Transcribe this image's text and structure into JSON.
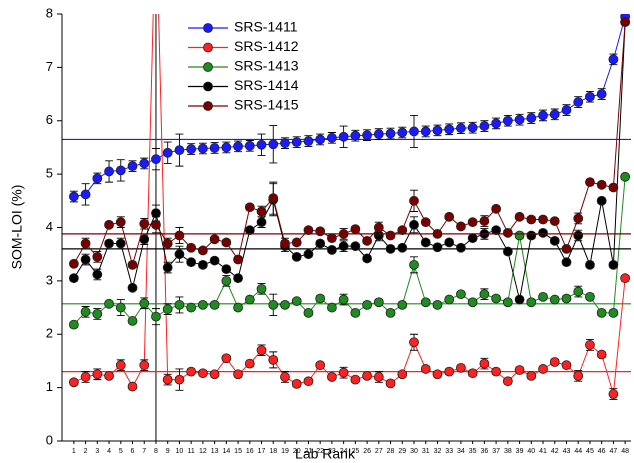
{
  "chart_data": {
    "type": "line",
    "x_label": "Lab Rank",
    "y_label": "SOM-LOI (%)",
    "categories": [
      "1",
      "2",
      "3",
      "4",
      "5",
      "6",
      "7",
      "8",
      "9",
      "10",
      "11",
      "12",
      "13",
      "14",
      "15",
      "16",
      "17",
      "18",
      "19",
      "20",
      "21",
      "22",
      "23",
      "24",
      "25",
      "26",
      "27",
      "28",
      "29",
      "30",
      "31",
      "32",
      "33",
      "34",
      "35",
      "36",
      "37",
      "38",
      "39",
      "40",
      "41",
      "42",
      "43",
      "44",
      "45",
      "46",
      "47",
      "48"
    ],
    "ylim": [
      0,
      8
    ],
    "yticks": [
      0,
      1,
      2,
      3,
      4,
      5,
      6,
      7,
      8
    ],
    "vline": 8,
    "legend": "upper left",
    "series": [
      {
        "name": "SRS-1411",
        "color": "#1a1aff",
        "mean": 5.65,
        "values": [
          4.58,
          4.62,
          4.92,
          5.05,
          5.07,
          5.15,
          5.2,
          5.28,
          5.4,
          5.45,
          5.47,
          5.48,
          5.49,
          5.5,
          5.52,
          5.53,
          5.55,
          5.56,
          5.58,
          5.6,
          5.62,
          5.65,
          5.68,
          5.7,
          5.72,
          5.73,
          5.75,
          5.76,
          5.78,
          5.8,
          5.8,
          5.82,
          5.84,
          5.86,
          5.87,
          5.9,
          5.95,
          6.0,
          6.02,
          6.05,
          6.1,
          6.12,
          6.2,
          6.35,
          6.45,
          6.5,
          7.15,
          7.95
        ],
        "errors": [
          0.1,
          0.2,
          0.1,
          0.2,
          0.2,
          0.1,
          0.1,
          0.2,
          0.2,
          0.3,
          0.1,
          0.1,
          0.1,
          0.1,
          0.1,
          0.1,
          0.2,
          0.35,
          0.1,
          0.1,
          0.1,
          0.1,
          0.1,
          0.2,
          0.1,
          0.1,
          0.1,
          0.1,
          0.1,
          0.3,
          0.1,
          0.1,
          0.1,
          0.1,
          0.1,
          0.1,
          0.1,
          0.1,
          0.1,
          0.1,
          0.1,
          0.1,
          0.1,
          0.1,
          0.1,
          0.1,
          0.1,
          0.1
        ]
      },
      {
        "name": "SRS-1412",
        "color": "#ff2020",
        "mean": 1.3,
        "values": [
          1.1,
          1.2,
          1.25,
          1.22,
          1.42,
          1.02,
          1.42,
          10,
          1.15,
          1.15,
          1.3,
          1.27,
          1.25,
          1.55,
          1.25,
          1.45,
          1.7,
          1.52,
          1.2,
          1.07,
          1.12,
          1.42,
          1.2,
          1.28,
          1.15,
          1.22,
          1.2,
          1.08,
          1.25,
          1.85,
          1.35,
          1.25,
          1.3,
          1.37,
          1.27,
          1.45,
          1.3,
          1.12,
          1.33,
          1.22,
          1.35,
          1.48,
          1.42,
          1.22,
          1.8,
          1.62,
          0.88,
          3.05
        ],
        "errors": [
          0.05,
          0.1,
          0.1,
          0.05,
          0.1,
          0.05,
          0.1,
          0.1,
          0.1,
          0.2,
          0.05,
          0.05,
          0.05,
          0.05,
          0.05,
          0.05,
          0.1,
          0.15,
          0.1,
          0.05,
          0.05,
          0.05,
          0.05,
          0.1,
          0.05,
          0.05,
          0.1,
          0.05,
          0.05,
          0.15,
          0.05,
          0.05,
          0.05,
          0.05,
          0.05,
          0.1,
          0.05,
          0.05,
          0.05,
          0.05,
          0.05,
          0.05,
          0.05,
          0.1,
          0.1,
          0.05,
          0.1,
          0.05
        ]
      },
      {
        "name": "SRS-1413",
        "color": "#1e8c1e",
        "mean": 2.57,
        "values": [
          2.18,
          2.42,
          2.38,
          2.57,
          2.5,
          2.25,
          2.58,
          2.33,
          2.47,
          2.55,
          2.5,
          2.55,
          2.55,
          3.0,
          2.5,
          2.65,
          2.85,
          2.55,
          2.55,
          2.62,
          2.4,
          2.67,
          2.5,
          2.65,
          2.4,
          2.55,
          2.6,
          2.4,
          2.55,
          3.3,
          2.6,
          2.55,
          2.65,
          2.75,
          2.6,
          2.75,
          2.67,
          2.6,
          3.85,
          2.6,
          2.7,
          2.65,
          2.67,
          2.8,
          2.7,
          2.4,
          2.4,
          4.95
        ],
        "errors": [
          0.05,
          0.1,
          0.1,
          0.05,
          0.15,
          0.05,
          0.1,
          0.15,
          0.1,
          0.15,
          0.05,
          0.05,
          0.05,
          0.1,
          0.05,
          0.05,
          0.1,
          0.2,
          0.05,
          0.05,
          0.05,
          0.05,
          0.05,
          0.1,
          0.05,
          0.05,
          0.05,
          0.05,
          0.05,
          0.15,
          0.05,
          0.05,
          0.05,
          0.05,
          0.05,
          0.1,
          0.05,
          0.05,
          0.05,
          0.05,
          0.05,
          0.05,
          0.05,
          0.1,
          0.05,
          0.05,
          0.05,
          0.05
        ]
      },
      {
        "name": "SRS-1414",
        "color": "#000000",
        "mean": 3.6,
        "values": [
          3.05,
          3.4,
          3.12,
          3.7,
          3.7,
          2.87,
          3.78,
          4.27,
          3.25,
          3.5,
          3.35,
          3.3,
          3.38,
          3.22,
          3.05,
          3.95,
          4.1,
          4.52,
          3.65,
          3.45,
          3.5,
          3.7,
          3.58,
          3.65,
          3.65,
          3.42,
          3.85,
          3.6,
          3.62,
          4.05,
          3.72,
          3.63,
          3.72,
          3.62,
          3.8,
          3.88,
          3.95,
          3.55,
          2.65,
          3.85,
          3.9,
          3.75,
          3.35,
          3.85,
          3.3,
          4.5,
          3.3,
          7.85
        ],
        "errors": [
          0.05,
          0.1,
          0.1,
          0.05,
          0.1,
          0.05,
          0.1,
          0.15,
          0.1,
          0.15,
          0.05,
          0.05,
          0.05,
          0.05,
          0.05,
          0.05,
          0.1,
          0.3,
          0.1,
          0.05,
          0.05,
          0.05,
          0.05,
          0.1,
          0.05,
          0.05,
          0.1,
          0.05,
          0.05,
          0.15,
          0.05,
          0.05,
          0.05,
          0.05,
          0.05,
          0.1,
          0.05,
          0.05,
          0.05,
          0.05,
          0.05,
          0.05,
          0.05,
          0.1,
          0.05,
          0.05,
          0.05,
          0.05
        ]
      },
      {
        "name": "SRS-1415",
        "color": "#7a0000",
        "mean": 3.88,
        "values": [
          3.32,
          3.7,
          3.45,
          4.05,
          4.1,
          3.3,
          4.07,
          4.05,
          3.7,
          3.85,
          3.62,
          3.57,
          3.78,
          3.72,
          3.4,
          4.38,
          4.3,
          4.55,
          3.7,
          3.72,
          3.95,
          3.93,
          3.8,
          3.88,
          3.97,
          3.75,
          4.0,
          3.85,
          3.95,
          4.5,
          4.1,
          3.88,
          4.2,
          4.02,
          4.1,
          4.12,
          4.35,
          3.9,
          4.2,
          4.15,
          4.15,
          4.12,
          3.6,
          4.17,
          4.85,
          4.8,
          4.75,
          7.85
        ],
        "errors": [
          0.05,
          0.1,
          0.1,
          0.05,
          0.1,
          0.05,
          0.1,
          0.15,
          0.1,
          0.15,
          0.05,
          0.05,
          0.05,
          0.05,
          0.05,
          0.05,
          0.1,
          0.3,
          0.1,
          0.05,
          0.05,
          0.05,
          0.05,
          0.1,
          0.05,
          0.05,
          0.1,
          0.05,
          0.05,
          0.2,
          0.05,
          0.05,
          0.05,
          0.05,
          0.05,
          0.1,
          0.05,
          0.05,
          0.05,
          0.05,
          0.05,
          0.05,
          0.05,
          0.1,
          0.05,
          0.05,
          0.05,
          0.05
        ]
      }
    ]
  }
}
